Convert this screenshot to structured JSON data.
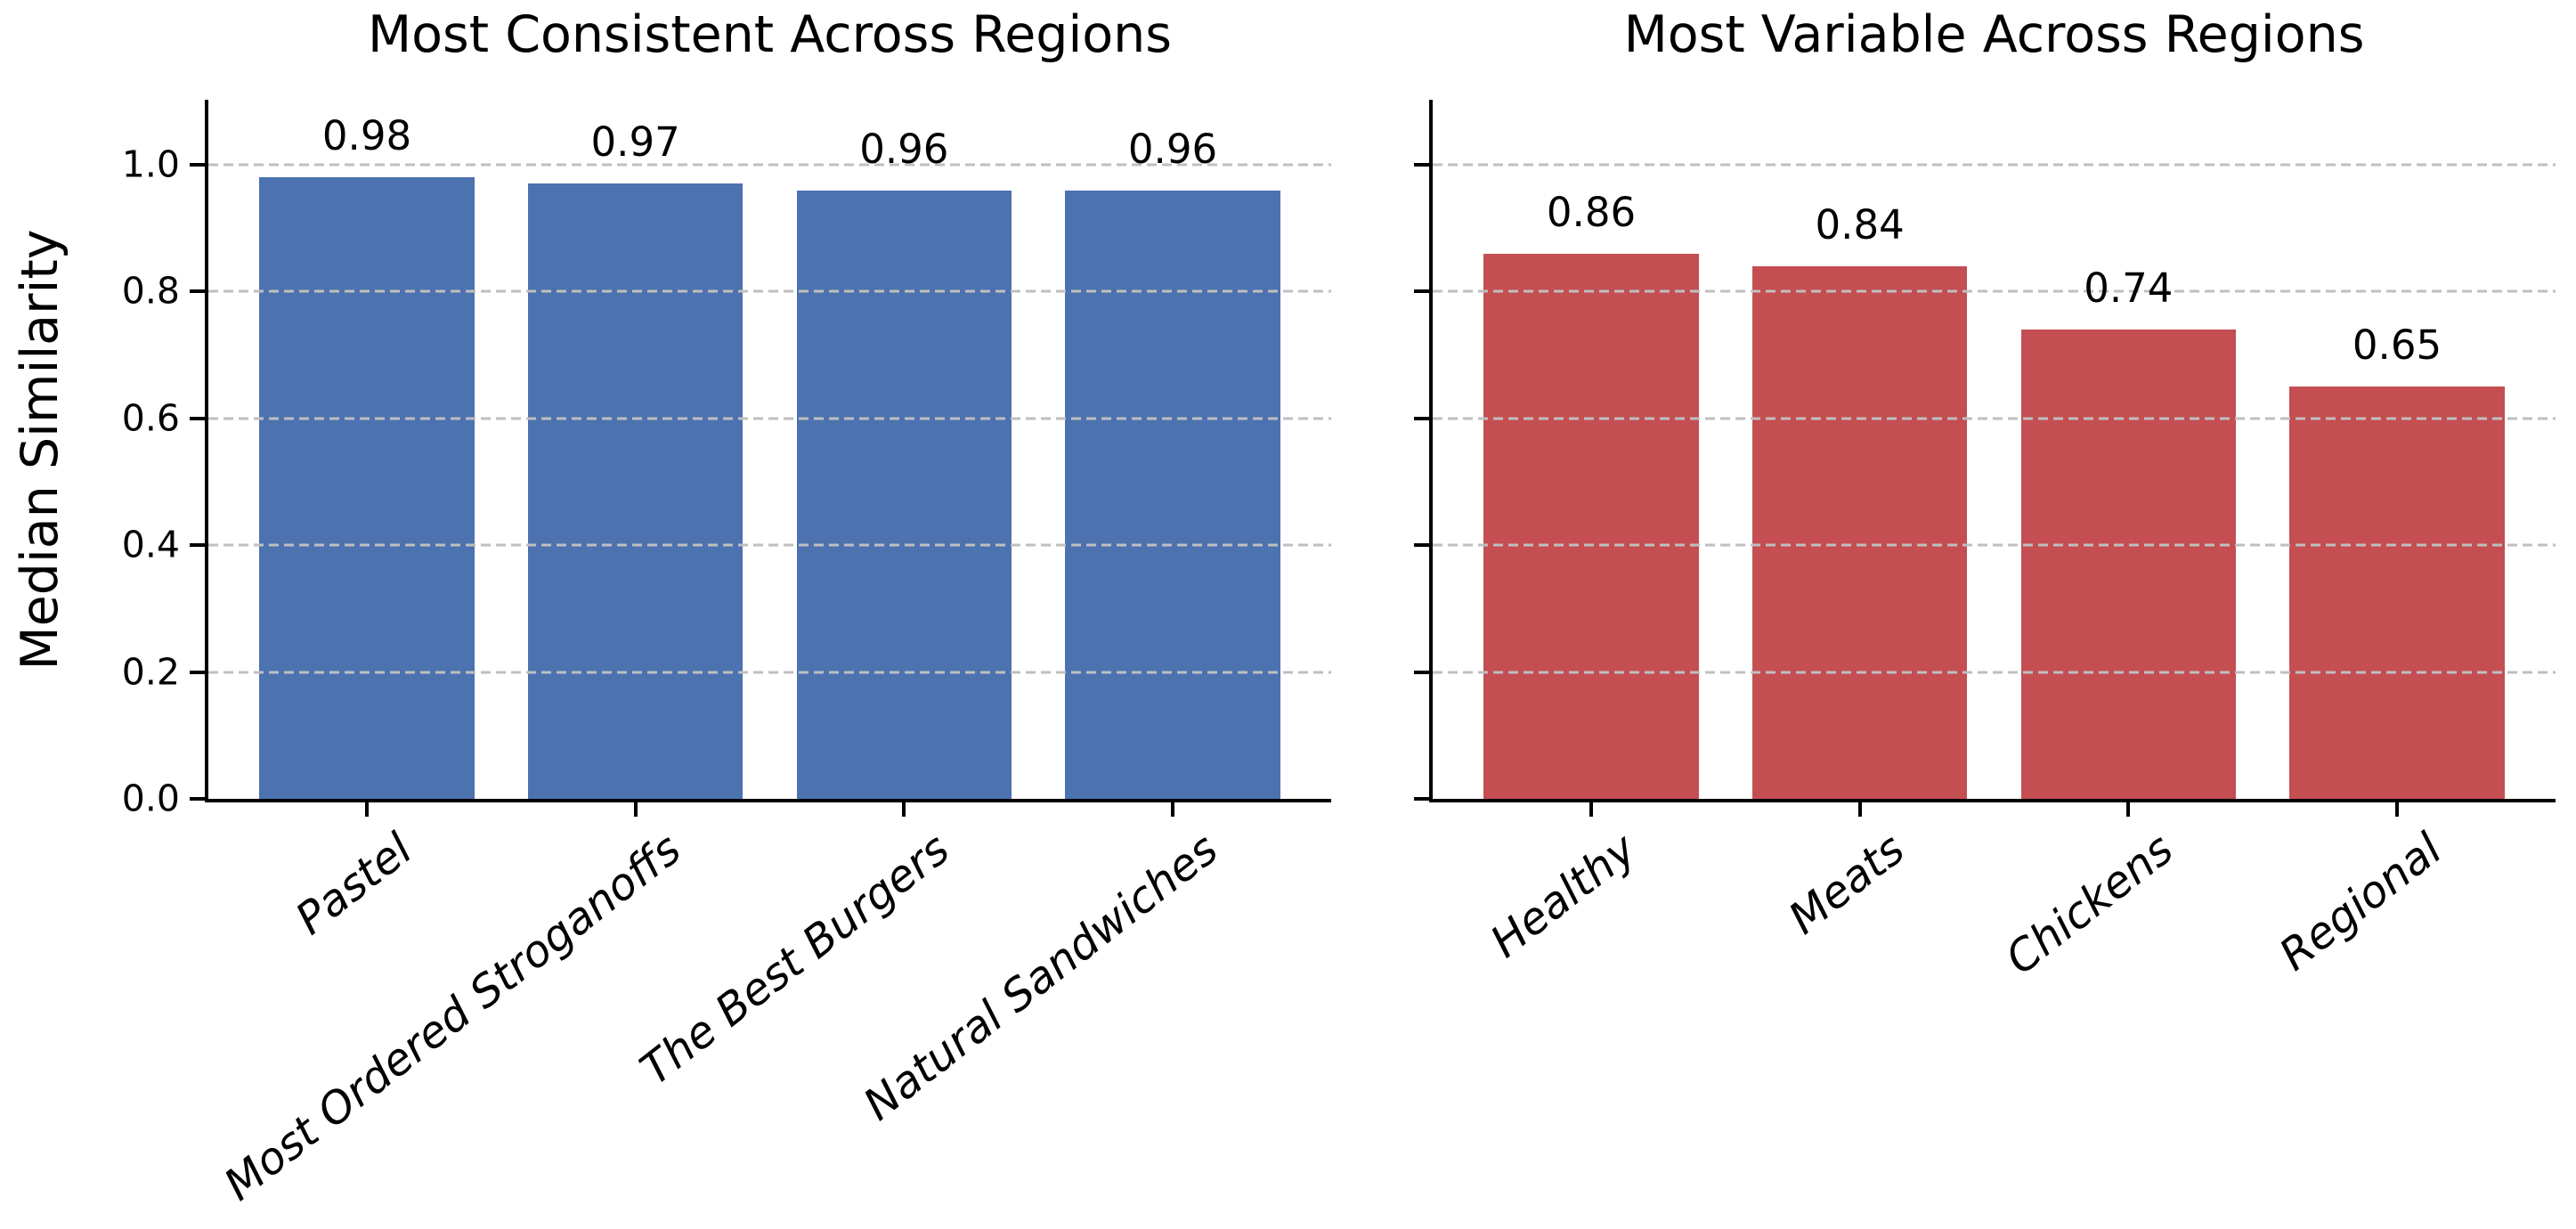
{
  "figure": {
    "background_color": "#ffffff",
    "axis_color": "#000000",
    "grid_color": "#bfbfbf",
    "shared_ylabel": "Median Similarity"
  },
  "chart_data": [
    {
      "type": "bar",
      "title": "Most Consistent Across Regions",
      "categories": [
        "Pastel",
        "Most Ordered Stroganoffs",
        "The Best Burgers",
        "Natural Sandwiches"
      ],
      "values": [
        0.98,
        0.97,
        0.96,
        0.96
      ],
      "value_labels": [
        "0.98",
        "0.97",
        "0.96",
        "0.96"
      ],
      "bar_color": "#4C72B0",
      "ylabel": "Median Similarity",
      "ylim": [
        0,
        1.1
      ],
      "yticks": [
        0.0,
        0.2,
        0.4,
        0.6,
        0.8,
        1.0
      ],
      "ytick_labels": [
        "0.0",
        "0.2",
        "0.4",
        "0.6",
        "0.8",
        "1.0"
      ],
      "grid": "horizontal dashed",
      "legend": "none",
      "xlabel": "",
      "xtick_style": "italic rotated 38deg"
    },
    {
      "type": "bar",
      "title": "Most Variable Across Regions",
      "categories": [
        "Healthy",
        "Meats",
        "Chickens",
        "Regional"
      ],
      "values": [
        0.86,
        0.84,
        0.74,
        0.65
      ],
      "value_labels": [
        "0.86",
        "0.84",
        "0.74",
        "0.65"
      ],
      "bar_color": "#C44E52",
      "ylabel": "",
      "ylim": [
        0,
        1.1
      ],
      "yticks": [
        0.0,
        0.2,
        0.4,
        0.6,
        0.8,
        1.0
      ],
      "ytick_labels": [],
      "grid": "horizontal dashed",
      "legend": "none",
      "xlabel": "",
      "xtick_style": "italic rotated 38deg"
    }
  ]
}
